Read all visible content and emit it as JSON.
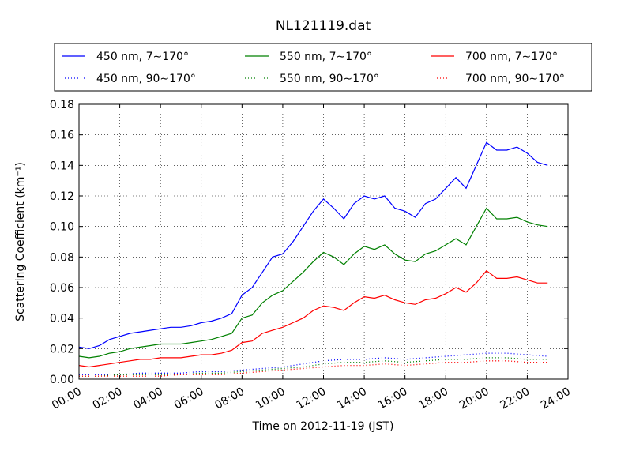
{
  "chart_data": {
    "type": "line",
    "title": "NL121119.dat",
    "xlabel": "Time on 2012-11-19 (JST)",
    "ylabel": "Scattering Coefficient (km⁻¹)",
    "xlim": [
      0,
      24
    ],
    "ylim": [
      0,
      0.18
    ],
    "x_ticks": [
      0,
      2,
      4,
      6,
      8,
      10,
      12,
      14,
      16,
      18,
      20,
      22,
      24
    ],
    "x_tick_labels": [
      "00:00",
      "02:00",
      "04:00",
      "06:00",
      "08:00",
      "10:00",
      "12:00",
      "14:00",
      "16:00",
      "18:00",
      "20:00",
      "22:00",
      "24:00"
    ],
    "y_ticks": [
      0,
      0.02,
      0.04,
      0.06,
      0.08,
      0.1,
      0.12,
      0.14,
      0.16,
      0.18
    ],
    "y_tick_labels": [
      "0.00",
      "0.02",
      "0.04",
      "0.06",
      "0.08",
      "0.10",
      "0.12",
      "0.14",
      "0.16",
      "0.18"
    ],
    "grid": true,
    "legend_position": "top",
    "x_unit": "hours since 00:00",
    "series": [
      {
        "name": "450 nm, 7∼170°",
        "color": "#0000ff",
        "style": "solid",
        "x": [
          0,
          0.5,
          1,
          1.5,
          2,
          2.5,
          3,
          3.5,
          4,
          4.5,
          5,
          5.5,
          6,
          6.5,
          7,
          7.5,
          8,
          8.5,
          9,
          9.5,
          10,
          10.5,
          11,
          11.5,
          12,
          12.5,
          13,
          13.5,
          14,
          14.5,
          15,
          15.5,
          16,
          16.5,
          17,
          17.5,
          18,
          18.5,
          19,
          19.5,
          20,
          20.5,
          21,
          21.5,
          22,
          22.5,
          23
        ],
        "y": [
          0.021,
          0.02,
          0.022,
          0.026,
          0.028,
          0.03,
          0.031,
          0.032,
          0.033,
          0.034,
          0.034,
          0.035,
          0.037,
          0.038,
          0.04,
          0.043,
          0.055,
          0.06,
          0.07,
          0.08,
          0.082,
          0.09,
          0.1,
          0.11,
          0.118,
          0.112,
          0.105,
          0.115,
          0.12,
          0.118,
          0.12,
          0.112,
          0.11,
          0.106,
          0.115,
          0.118,
          0.125,
          0.132,
          0.125,
          0.14,
          0.155,
          0.15,
          0.15,
          0.152,
          0.148,
          0.142,
          0.14
        ]
      },
      {
        "name": "550 nm, 7∼170°",
        "color": "#008000",
        "style": "solid",
        "x": [
          0,
          0.5,
          1,
          1.5,
          2,
          2.5,
          3,
          3.5,
          4,
          4.5,
          5,
          5.5,
          6,
          6.5,
          7,
          7.5,
          8,
          8.5,
          9,
          9.5,
          10,
          10.5,
          11,
          11.5,
          12,
          12.5,
          13,
          13.5,
          14,
          14.5,
          15,
          15.5,
          16,
          16.5,
          17,
          17.5,
          18,
          18.5,
          19,
          19.5,
          20,
          20.5,
          21,
          21.5,
          22,
          22.5,
          23
        ],
        "y": [
          0.015,
          0.014,
          0.015,
          0.017,
          0.018,
          0.02,
          0.021,
          0.022,
          0.023,
          0.023,
          0.023,
          0.024,
          0.025,
          0.026,
          0.028,
          0.03,
          0.04,
          0.042,
          0.05,
          0.055,
          0.058,
          0.064,
          0.07,
          0.077,
          0.083,
          0.08,
          0.075,
          0.082,
          0.087,
          0.085,
          0.088,
          0.082,
          0.078,
          0.077,
          0.082,
          0.084,
          0.088,
          0.092,
          0.088,
          0.1,
          0.112,
          0.105,
          0.105,
          0.106,
          0.103,
          0.101,
          0.1
        ]
      },
      {
        "name": "700 nm, 7∼170°",
        "color": "#ff0000",
        "style": "solid",
        "x": [
          0,
          0.5,
          1,
          1.5,
          2,
          2.5,
          3,
          3.5,
          4,
          4.5,
          5,
          5.5,
          6,
          6.5,
          7,
          7.5,
          8,
          8.5,
          9,
          9.5,
          10,
          10.5,
          11,
          11.5,
          12,
          12.5,
          13,
          13.5,
          14,
          14.5,
          15,
          15.5,
          16,
          16.5,
          17,
          17.5,
          18,
          18.5,
          19,
          19.5,
          20,
          20.5,
          21,
          21.5,
          22,
          22.5,
          23
        ],
        "y": [
          0.009,
          0.008,
          0.009,
          0.01,
          0.011,
          0.012,
          0.013,
          0.013,
          0.014,
          0.014,
          0.014,
          0.015,
          0.016,
          0.016,
          0.017,
          0.019,
          0.024,
          0.025,
          0.03,
          0.032,
          0.034,
          0.037,
          0.04,
          0.045,
          0.048,
          0.047,
          0.045,
          0.05,
          0.054,
          0.053,
          0.055,
          0.052,
          0.05,
          0.049,
          0.052,
          0.053,
          0.056,
          0.06,
          0.057,
          0.063,
          0.071,
          0.066,
          0.066,
          0.067,
          0.065,
          0.063,
          0.063
        ]
      },
      {
        "name": "450 nm, 90∼170°",
        "color": "#0000ff",
        "style": "dotted",
        "x": [
          0,
          1,
          2,
          3,
          4,
          5,
          6,
          7,
          8,
          9,
          10,
          11,
          12,
          13,
          14,
          15,
          16,
          17,
          18,
          19,
          20,
          21,
          22,
          23
        ],
        "y": [
          0.003,
          0.003,
          0.003,
          0.004,
          0.004,
          0.004,
          0.005,
          0.005,
          0.006,
          0.007,
          0.008,
          0.01,
          0.012,
          0.013,
          0.013,
          0.014,
          0.013,
          0.014,
          0.015,
          0.016,
          0.017,
          0.017,
          0.016,
          0.015
        ]
      },
      {
        "name": "550 nm, 90∼170°",
        "color": "#008000",
        "style": "dotted",
        "x": [
          0,
          1,
          2,
          3,
          4,
          5,
          6,
          7,
          8,
          9,
          10,
          11,
          12,
          13,
          14,
          15,
          16,
          17,
          18,
          19,
          20,
          21,
          22,
          23
        ],
        "y": [
          0.002,
          0.002,
          0.003,
          0.003,
          0.003,
          0.003,
          0.004,
          0.004,
          0.005,
          0.006,
          0.007,
          0.008,
          0.01,
          0.011,
          0.011,
          0.012,
          0.011,
          0.012,
          0.013,
          0.013,
          0.014,
          0.014,
          0.013,
          0.013
        ]
      },
      {
        "name": "700 nm, 90∼170°",
        "color": "#ff0000",
        "style": "dotted",
        "x": [
          0,
          1,
          2,
          3,
          4,
          5,
          6,
          7,
          8,
          9,
          10,
          11,
          12,
          13,
          14,
          15,
          16,
          17,
          18,
          19,
          20,
          21,
          22,
          23
        ],
        "y": [
          0.002,
          0.002,
          0.002,
          0.002,
          0.002,
          0.003,
          0.003,
          0.003,
          0.004,
          0.005,
          0.006,
          0.007,
          0.008,
          0.009,
          0.009,
          0.01,
          0.009,
          0.01,
          0.011,
          0.011,
          0.012,
          0.012,
          0.011,
          0.011
        ]
      }
    ]
  }
}
